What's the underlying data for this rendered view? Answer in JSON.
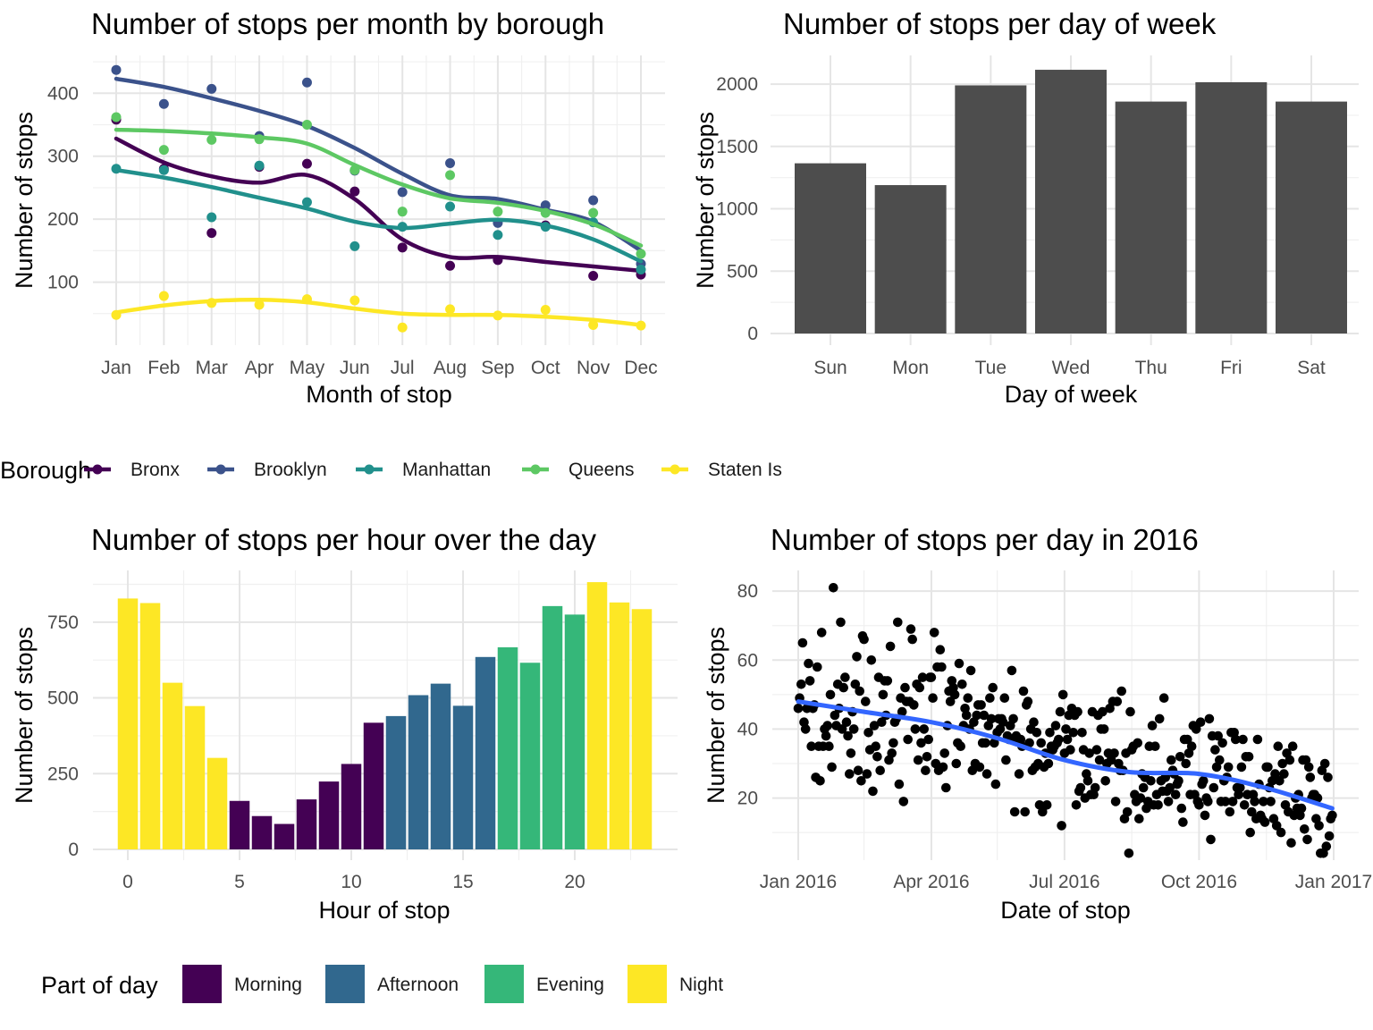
{
  "colors": {
    "Bronx": "#440154",
    "Brooklyn": "#3B528B",
    "Manhattan": "#21908C",
    "Queens": "#5DC863",
    "Staten Is": "#FDE725",
    "Morning": "#440154",
    "Afternoon": "#31688E",
    "Evening": "#35B779",
    "Night": "#FDE725",
    "bar": "#4D4D4D",
    "point": "#000000",
    "smooth": "#3366FF"
  },
  "legends": {
    "borough": {
      "title": "Borough",
      "items": [
        "Bronx",
        "Brooklyn",
        "Manhattan",
        "Queens",
        "Staten Is"
      ]
    },
    "part_of_day": {
      "title": "Part of day",
      "items": [
        "Morning",
        "Afternoon",
        "Evening",
        "Night"
      ]
    }
  },
  "chart_data": [
    {
      "type": "line",
      "title": "Number of stops per month by borough",
      "xlabel": "Month of stop",
      "ylabel": "Number of stops",
      "categories": [
        "Jan",
        "Feb",
        "Mar",
        "Apr",
        "May",
        "Jun",
        "Jul",
        "Aug",
        "Sep",
        "Oct",
        "Nov",
        "Dec"
      ],
      "yticks": [
        100,
        200,
        300,
        400
      ],
      "ylim": [
        0,
        460
      ],
      "legend": "bottom",
      "series": [
        {
          "name": "Bronx",
          "points": [
            358,
            280,
            178,
            283,
            288,
            244,
            155,
            126,
            135,
            190,
            110,
            112
          ],
          "smooth": [
            328,
            290,
            268,
            258,
            270,
            232,
            168,
            140,
            140,
            132,
            125,
            118
          ]
        },
        {
          "name": "Brooklyn",
          "points": [
            437,
            383,
            407,
            332,
            417,
            277,
            243,
            289,
            194,
            222,
            230,
            129
          ],
          "smooth": [
            423,
            410,
            392,
            372,
            348,
            313,
            272,
            238,
            232,
            215,
            196,
            150
          ]
        },
        {
          "name": "Manhattan",
          "points": [
            280,
            278,
            203,
            285,
            227,
            157,
            188,
            220,
            175,
            188,
            195,
            120
          ],
          "smooth": [
            278,
            266,
            251,
            234,
            217,
            196,
            186,
            193,
            199,
            190,
            168,
            133
          ]
        },
        {
          "name": "Queens",
          "points": [
            362,
            310,
            326,
            327,
            350,
            278,
            212,
            270,
            212,
            210,
            210,
            145
          ],
          "smooth": [
            342,
            340,
            336,
            330,
            320,
            286,
            255,
            233,
            226,
            213,
            192,
            158
          ]
        },
        {
          "name": "Staten Is",
          "points": [
            48,
            78,
            67,
            64,
            73,
            71,
            28,
            57,
            47,
            56,
            32,
            31
          ],
          "smooth": [
            52,
            63,
            70,
            72,
            68,
            58,
            50,
            48,
            48,
            45,
            40,
            32
          ]
        }
      ]
    },
    {
      "type": "bar",
      "title": "Number of stops per day of week",
      "xlabel": "Day of week",
      "ylabel": "Number of stops",
      "categories": [
        "Sun",
        "Mon",
        "Tue",
        "Wed",
        "Thu",
        "Fri",
        "Sat"
      ],
      "values": [
        1365,
        1190,
        1990,
        2115,
        1860,
        2015,
        1860
      ],
      "yticks": [
        0,
        500,
        1000,
        1500,
        2000
      ],
      "ylim": [
        0,
        2230
      ]
    },
    {
      "type": "bar",
      "title": "Number of stops per hour over the day",
      "xlabel": "Hour of stop",
      "ylabel": "Number of stops",
      "x": [
        0,
        1,
        2,
        3,
        4,
        5,
        6,
        7,
        8,
        9,
        10,
        11,
        12,
        13,
        14,
        15,
        16,
        17,
        18,
        19,
        20,
        21,
        22,
        23
      ],
      "values": [
        828,
        813,
        550,
        473,
        302,
        160,
        110,
        84,
        165,
        224,
        282,
        418,
        440,
        509,
        547,
        474,
        635,
        667,
        616,
        803,
        775,
        882,
        815,
        793
      ],
      "part_of_day": [
        "Night",
        "Night",
        "Night",
        "Night",
        "Night",
        "Morning",
        "Morning",
        "Morning",
        "Morning",
        "Morning",
        "Morning",
        "Morning",
        "Afternoon",
        "Afternoon",
        "Afternoon",
        "Afternoon",
        "Afternoon",
        "Evening",
        "Evening",
        "Evening",
        "Evening",
        "Night",
        "Night",
        "Night"
      ],
      "xticks": [
        0,
        5,
        10,
        15,
        20
      ],
      "yticks": [
        0,
        250,
        500,
        750
      ],
      "ylim": [
        0,
        900
      ],
      "legend": "bottom"
    },
    {
      "type": "scatter",
      "title": "Number of stops per day in 2016",
      "xlabel": "Date of stop",
      "ylabel": "Number of stops",
      "xticks": [
        "Jan 2016",
        "Apr 2016",
        "Jul 2016",
        "Oct 2016",
        "Jan 2017"
      ],
      "xlim": [
        "2015-12-22",
        "2017-01-01"
      ],
      "yticks": [
        20,
        40,
        60,
        80
      ],
      "ylim": [
        2,
        86
      ],
      "n_points": 366,
      "trend": {
        "x": [
          "2016-01-01",
          "2016-02-15",
          "2016-04-01",
          "2016-05-15",
          "2016-07-01",
          "2016-08-15",
          "2016-10-01",
          "2016-11-15",
          "2016-12-31"
        ],
        "y": [
          48,
          45,
          42,
          37.5,
          31,
          27.5,
          27,
          23,
          17
        ]
      }
    }
  ]
}
